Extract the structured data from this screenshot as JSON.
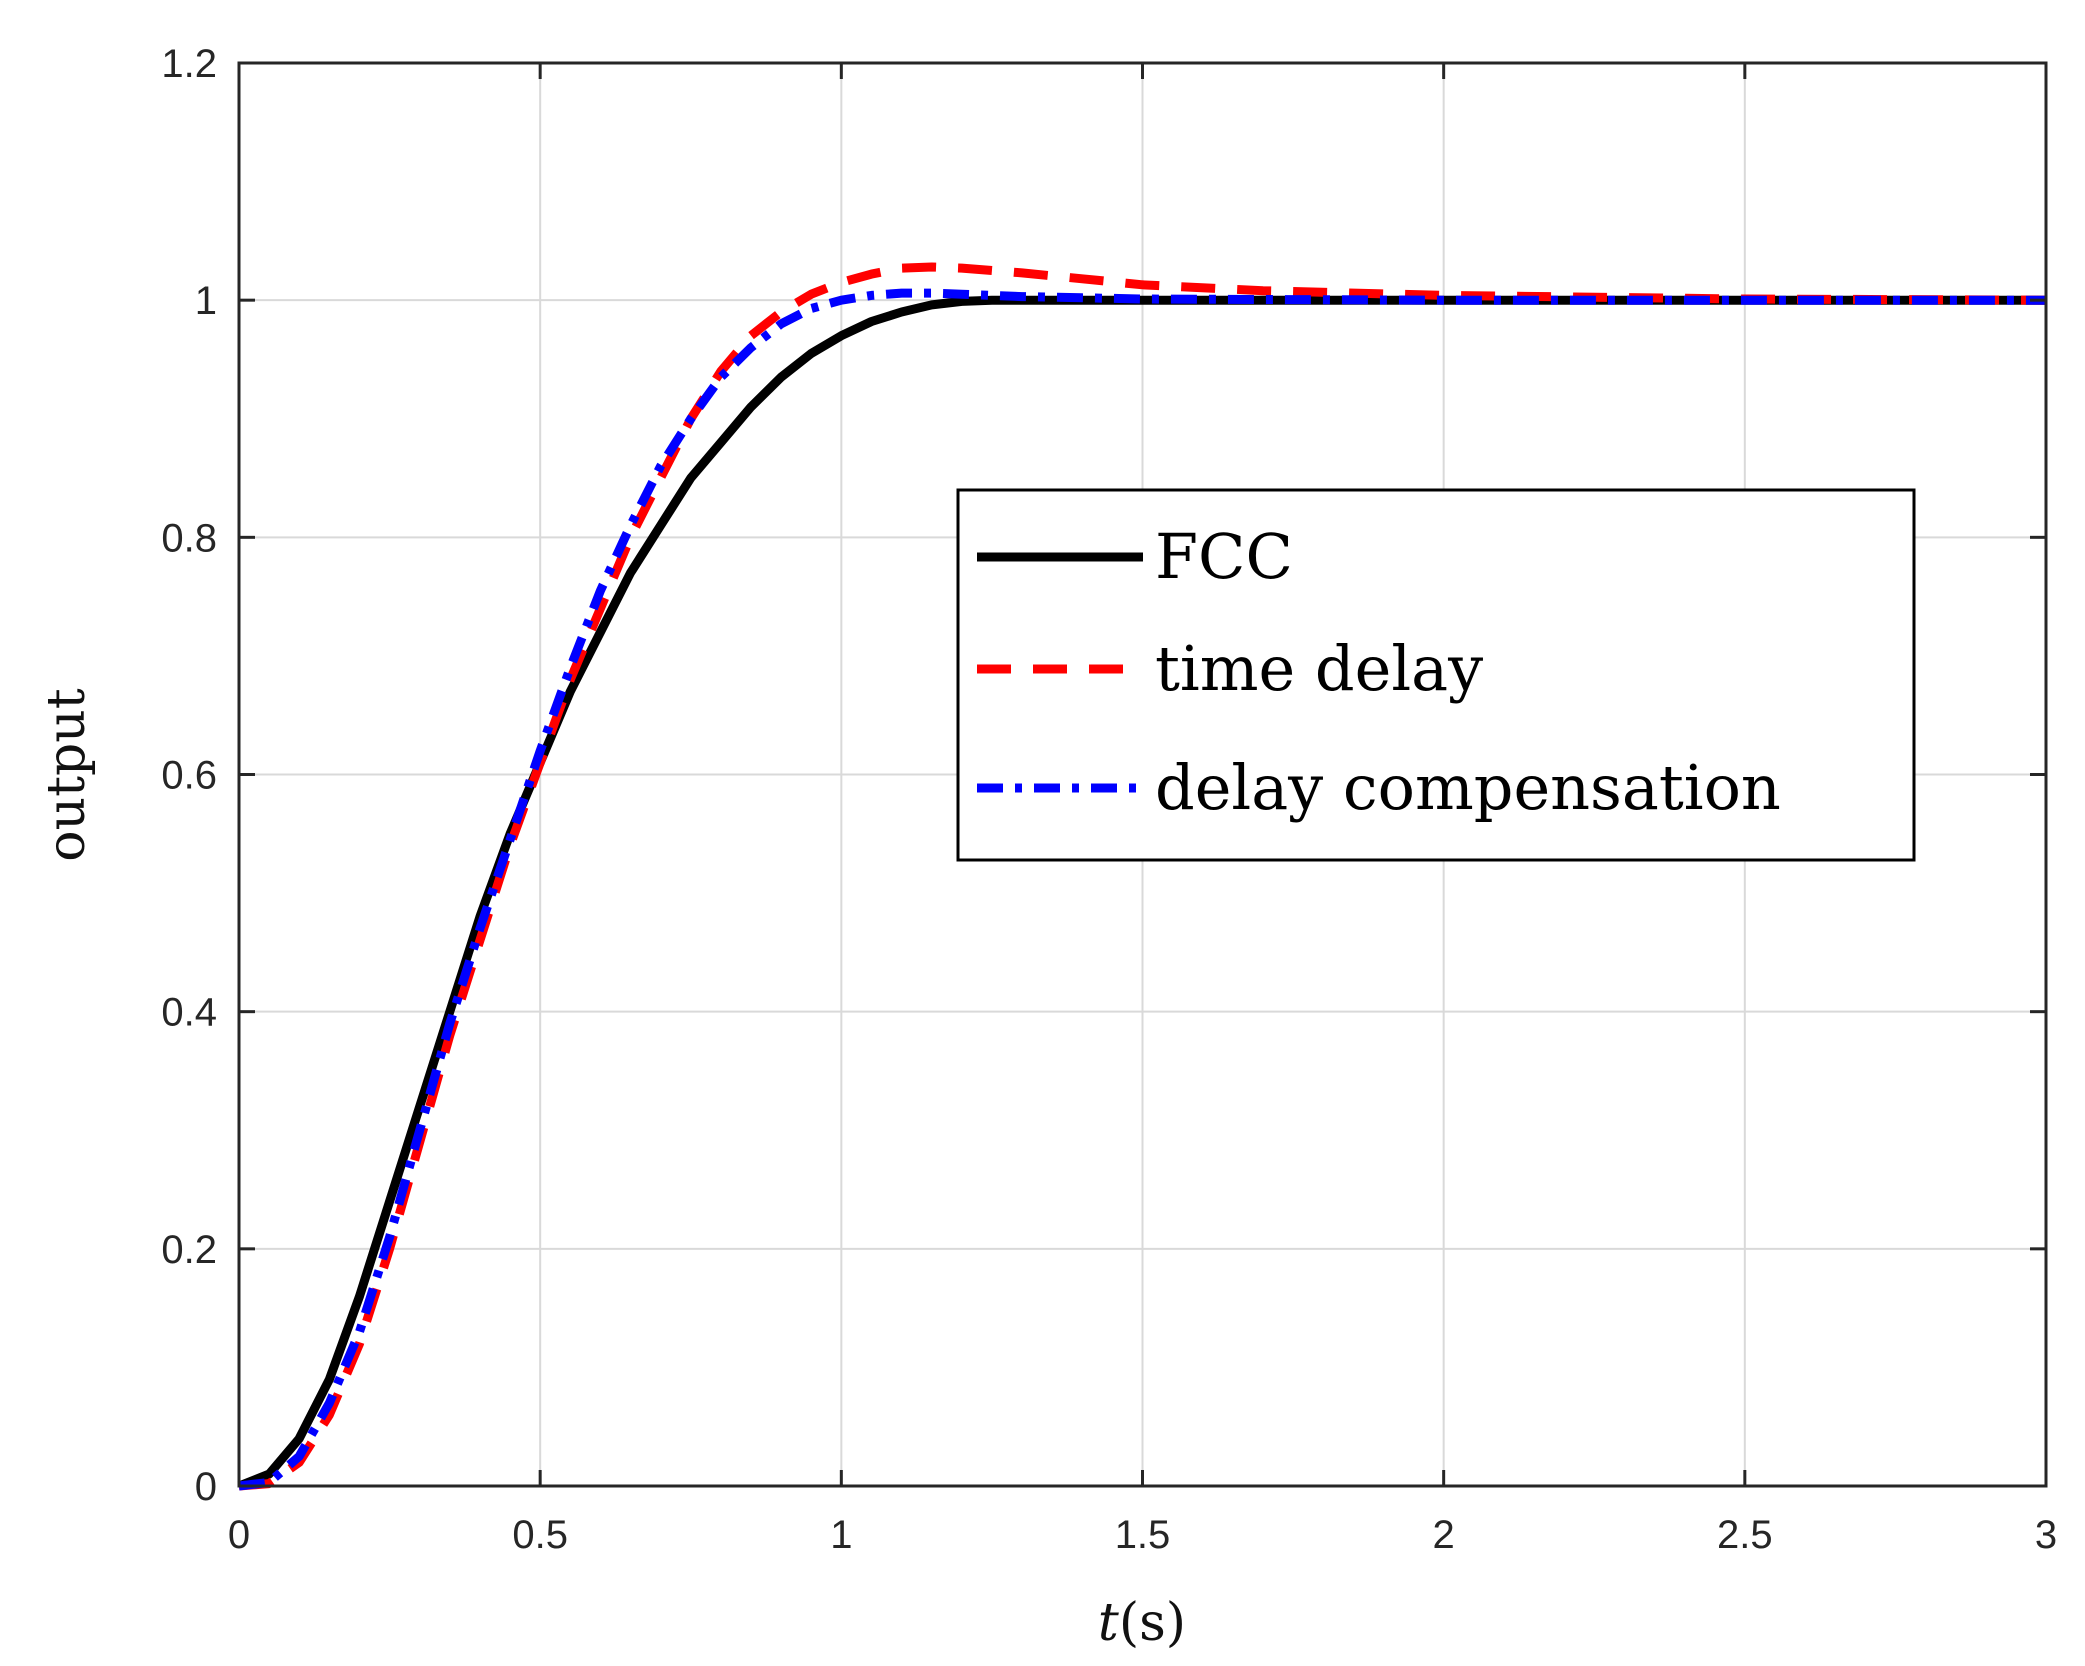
{
  "chart_data": {
    "type": "line",
    "title": "",
    "xlabel_italic": "t",
    "xlabel_rest": "(s)",
    "ylabel": "output",
    "xlim": [
      0,
      3
    ],
    "ylim": [
      0,
      1.2
    ],
    "xticks": [
      "0",
      "0.5",
      "1",
      "1.5",
      "2",
      "2.5",
      "3"
    ],
    "yticks": [
      "0",
      "0.2",
      "0.4",
      "0.6",
      "0.8",
      "1",
      "1.2"
    ],
    "grid": true,
    "legend_position": "right-middle",
    "series": [
      {
        "name": "FCC",
        "color": "#000000",
        "style": "solid",
        "x": [
          0,
          0.05,
          0.1,
          0.15,
          0.2,
          0.25,
          0.3,
          0.35,
          0.4,
          0.45,
          0.5,
          0.55,
          0.6,
          0.65,
          0.7,
          0.75,
          0.8,
          0.85,
          0.9,
          0.95,
          1.0,
          1.05,
          1.1,
          1.15,
          1.2,
          1.25,
          1.3,
          1.4,
          1.5,
          2.0,
          2.5,
          3.0
        ],
        "y": [
          0,
          0.01,
          0.04,
          0.09,
          0.16,
          0.24,
          0.32,
          0.4,
          0.48,
          0.55,
          0.61,
          0.67,
          0.72,
          0.77,
          0.81,
          0.85,
          0.88,
          0.91,
          0.935,
          0.955,
          0.97,
          0.982,
          0.99,
          0.996,
          0.999,
          1.0,
          1.0,
          1.0,
          1.0,
          1.0,
          1.0,
          1.0
        ]
      },
      {
        "name": "time delay",
        "color": "#ff0000",
        "style": "dashed",
        "x": [
          0,
          0.05,
          0.1,
          0.15,
          0.2,
          0.25,
          0.3,
          0.35,
          0.4,
          0.45,
          0.5,
          0.55,
          0.6,
          0.65,
          0.7,
          0.75,
          0.8,
          0.85,
          0.9,
          0.95,
          1.0,
          1.05,
          1.1,
          1.15,
          1.2,
          1.3,
          1.4,
          1.5,
          1.7,
          2.0,
          2.5,
          3.0
        ],
        "y": [
          0,
          0.002,
          0.02,
          0.06,
          0.12,
          0.2,
          0.29,
          0.38,
          0.46,
          0.54,
          0.61,
          0.68,
          0.74,
          0.8,
          0.85,
          0.9,
          0.94,
          0.97,
          0.99,
          1.005,
          1.015,
          1.022,
          1.027,
          1.028,
          1.027,
          1.023,
          1.018,
          1.013,
          1.008,
          1.004,
          1.001,
          1.0
        ]
      },
      {
        "name": "delay compensation",
        "color": "#0000ff",
        "style": "dashdot",
        "x": [
          0,
          0.05,
          0.1,
          0.15,
          0.2,
          0.25,
          0.3,
          0.35,
          0.4,
          0.45,
          0.5,
          0.55,
          0.6,
          0.65,
          0.7,
          0.75,
          0.8,
          0.85,
          0.9,
          0.95,
          1.0,
          1.05,
          1.1,
          1.15,
          1.2,
          1.3,
          1.4,
          1.5,
          2.0,
          2.5,
          3.0
        ],
        "y": [
          0,
          0.003,
          0.025,
          0.07,
          0.13,
          0.21,
          0.3,
          0.39,
          0.47,
          0.545,
          0.62,
          0.69,
          0.755,
          0.81,
          0.86,
          0.9,
          0.935,
          0.96,
          0.98,
          0.993,
          1.0,
          1.004,
          1.006,
          1.006,
          1.005,
          1.003,
          1.002,
          1.001,
          1.0,
          1.0,
          1.0
        ]
      }
    ]
  }
}
